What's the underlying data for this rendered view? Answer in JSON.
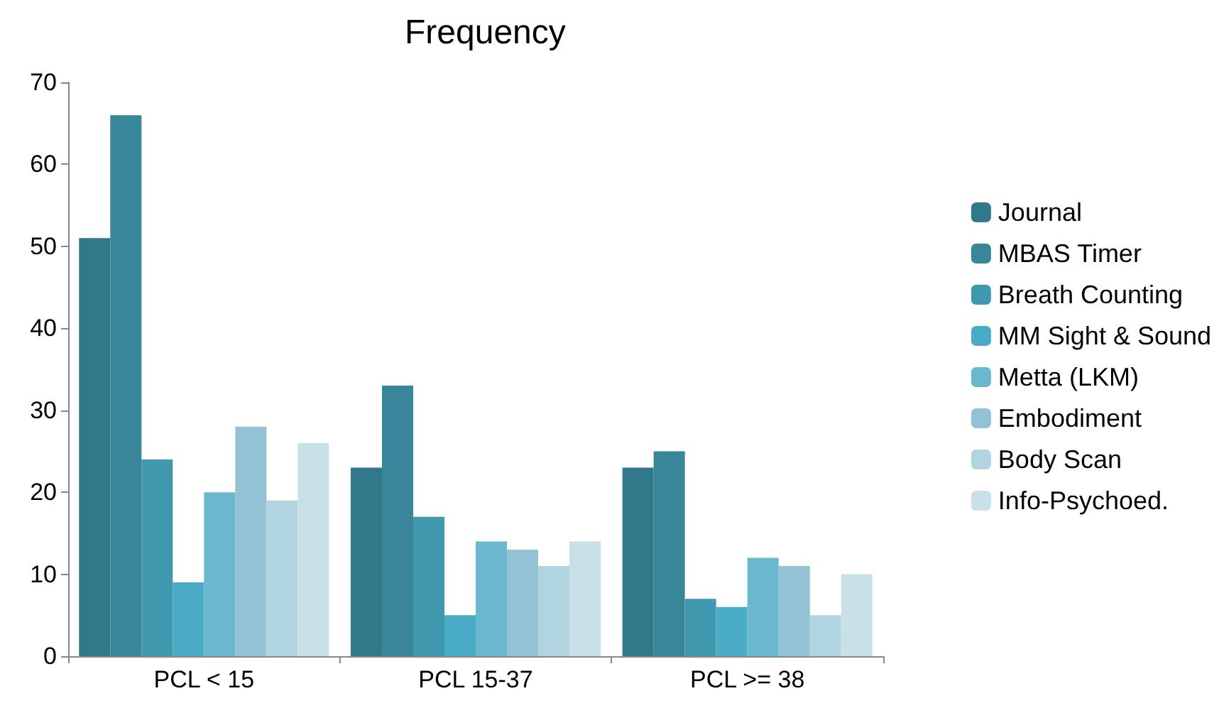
{
  "chart_data": {
    "type": "bar",
    "title": "Frequency",
    "categories": [
      "PCL < 15",
      "PCL 15-37",
      "PCL >= 38"
    ],
    "series": [
      {
        "name": "Journal",
        "color": "#31788a",
        "values": [
          51,
          23,
          23
        ]
      },
      {
        "name": "MBAS Timer",
        "color": "#37869a",
        "values": [
          66,
          33,
          25
        ]
      },
      {
        "name": "Breath Counting",
        "color": "#3f98ae",
        "values": [
          24,
          17,
          7
        ]
      },
      {
        "name": "MM Sight & Sound",
        "color": "#4aabc6",
        "values": [
          9,
          5,
          6
        ]
      },
      {
        "name": "Metta (LKM)",
        "color": "#6ab8d0",
        "values": [
          20,
          14,
          12
        ]
      },
      {
        "name": "Embodiment",
        "color": "#92c2d4",
        "values": [
          28,
          13,
          11
        ]
      },
      {
        "name": "Body Scan",
        "color": "#b0d4e0",
        "values": [
          19,
          11,
          5
        ]
      },
      {
        "name": "Info-Psychoed.",
        "color": "#c8e0e8",
        "values": [
          26,
          14,
          10
        ]
      }
    ],
    "ylim": [
      0,
      70
    ],
    "yticks": [
      0,
      10,
      20,
      30,
      40,
      50,
      60,
      70
    ],
    "grid": false,
    "legend": "right"
  }
}
